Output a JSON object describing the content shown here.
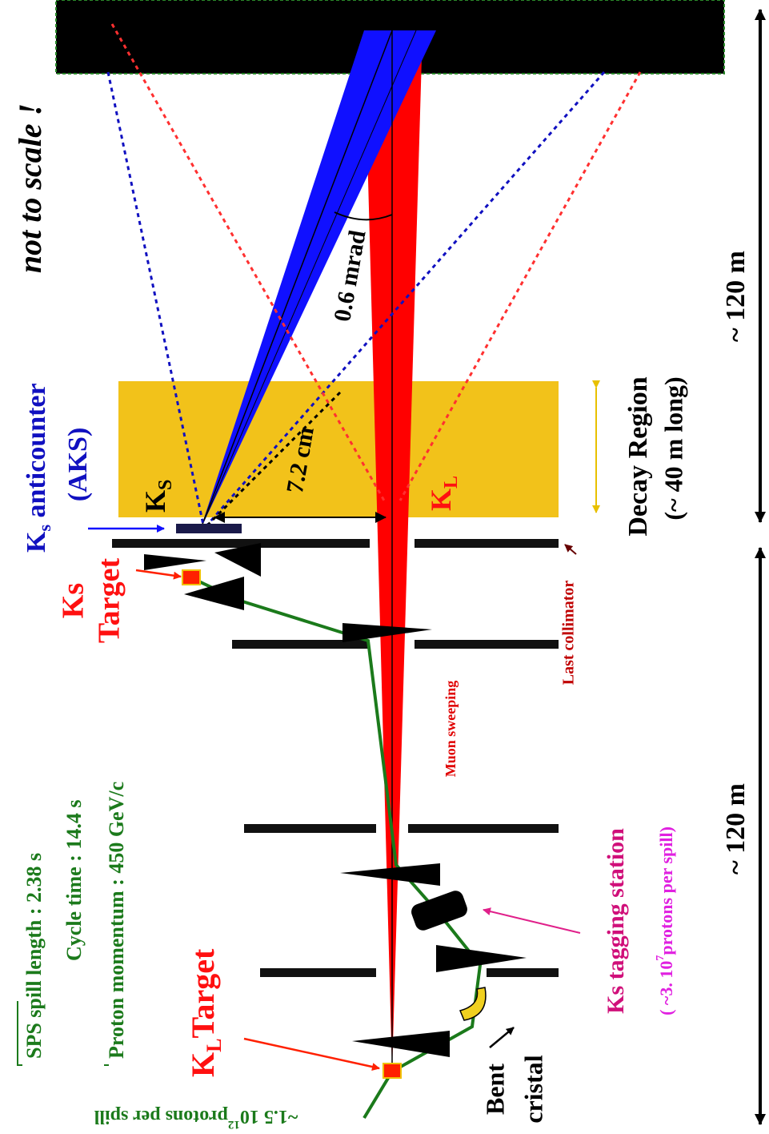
{
  "note": "not to scale !",
  "scales": {
    "decay_side": "~ 120 m",
    "target_side": "~ 120 m"
  },
  "decay_region": {
    "title": "Decay Region",
    "subtitle": "(~ 40 m long)"
  },
  "angle": "0.6 mrad",
  "offset": "7.2 cm",
  "anticounter": {
    "k": "K",
    "sub": "s",
    "text": " anticounter",
    "abbr": "(AKS)"
  },
  "ks_beam": {
    "k": "K",
    "sub": "S"
  },
  "kl_beam": {
    "k": "K",
    "sub": "L"
  },
  "ks_target": {
    "line1": "Ks",
    "line2": "Target"
  },
  "last_collimator": "Last collimator",
  "muon_sweeping": "Muon sweeping",
  "tagging": {
    "title": "Ks tagging station",
    "rate_pre": "( ~3. 10",
    "rate_exp": "7",
    "rate_post": "protons per spill)"
  },
  "sps": [
    "SPS spill length : 2.38 s",
    "Cycle time : 14.4 s",
    "Proton momentum : 450 GeV/c"
  ],
  "kl_target": {
    "k": "K",
    "sub": "L",
    "text": "Target"
  },
  "bent": {
    "line1": "Bent",
    "line2": "cristal"
  },
  "protons": {
    "pre": "~1.5 10",
    "exp": "12",
    "post": "protons per spill"
  }
}
